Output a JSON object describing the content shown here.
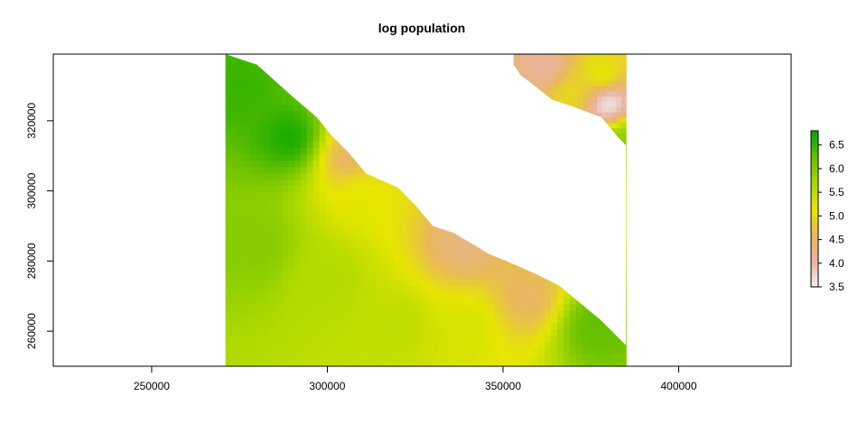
{
  "chart_data": {
    "type": "heatmap",
    "title": "log population",
    "xlabel": "",
    "ylabel": "",
    "xlim": [
      222000,
      432000
    ],
    "ylim": [
      250000,
      339000
    ],
    "x_ticks": [
      250000,
      300000,
      350000,
      400000
    ],
    "y_ticks": [
      260000,
      280000,
      300000,
      320000
    ],
    "x_tick_labels": [
      "250000",
      "300000",
      "350000",
      "400000"
    ],
    "y_tick_labels": [
      "260000",
      "280000",
      "300000",
      "320000"
    ],
    "raster_extent": {
      "xmin": 271000,
      "xmax": 385000,
      "ymin": 250000,
      "ymax": 339000
    },
    "coast_boundary": [
      [
        271000,
        339000
      ],
      [
        280000,
        336000
      ],
      [
        290000,
        327000
      ],
      [
        297000,
        321000
      ],
      [
        301000,
        316000
      ],
      [
        306000,
        311000
      ],
      [
        311000,
        305000
      ],
      [
        320000,
        301000
      ],
      [
        325000,
        296000
      ],
      [
        330000,
        290000
      ],
      [
        336000,
        288000
      ],
      [
        341000,
        285000
      ],
      [
        346000,
        282000
      ],
      [
        351000,
        280000
      ],
      [
        360000,
        276000
      ],
      [
        366000,
        273000
      ],
      [
        372000,
        268000
      ],
      [
        378000,
        263000
      ],
      [
        385000,
        256000
      ]
    ],
    "inlet_region": [
      [
        374000,
        339000
      ],
      [
        385000,
        339000
      ],
      [
        385000,
        313000
      ],
      [
        383000,
        315000
      ],
      [
        378000,
        321000
      ],
      [
        370000,
        324000
      ],
      [
        364000,
        326000
      ],
      [
        359000,
        330000
      ],
      [
        355000,
        333000
      ],
      [
        353000,
        336000
      ],
      [
        353000,
        339000
      ]
    ],
    "background_value": 5.6,
    "field_points": [
      {
        "x": 290000,
        "y": 315000,
        "value": 6.7
      },
      {
        "x": 275000,
        "y": 330000,
        "value": 6.5
      },
      {
        "x": 306000,
        "y": 310000,
        "value": 4.4
      },
      {
        "x": 339000,
        "y": 285000,
        "value": 4.3
      },
      {
        "x": 357000,
        "y": 270000,
        "value": 4.5
      },
      {
        "x": 376000,
        "y": 262000,
        "value": 6.3
      },
      {
        "x": 310000,
        "y": 300000,
        "value": 5.2
      },
      {
        "x": 300000,
        "y": 275000,
        "value": 5.6
      },
      {
        "x": 280000,
        "y": 285000,
        "value": 6.0
      },
      {
        "x": 320000,
        "y": 262000,
        "value": 5.5
      },
      {
        "x": 340000,
        "y": 262000,
        "value": 5.3
      },
      {
        "x": 362000,
        "y": 335000,
        "value": 4.1
      },
      {
        "x": 380000,
        "y": 325000,
        "value": 3.5
      },
      {
        "x": 378000,
        "y": 333000,
        "value": 5.2
      },
      {
        "x": 369000,
        "y": 328000,
        "value": 5.0
      },
      {
        "x": 384000,
        "y": 315000,
        "value": 6.0
      }
    ],
    "legend": {
      "position": "right",
      "min": 3.5,
      "max": 6.8,
      "tick_values": [
        3.5,
        4.0,
        4.5,
        5.0,
        5.5,
        6.0,
        6.5
      ],
      "tick_labels": [
        "3.5",
        "4.0",
        "4.5",
        "5.0",
        "5.5",
        "6.0",
        "6.5"
      ]
    },
    "color_scale": [
      "#f2f2f2",
      "#e9b3a3",
      "#e8b95a",
      "#e6e600",
      "#a8d800",
      "#66c000",
      "#00a600"
    ],
    "grid": false
  }
}
